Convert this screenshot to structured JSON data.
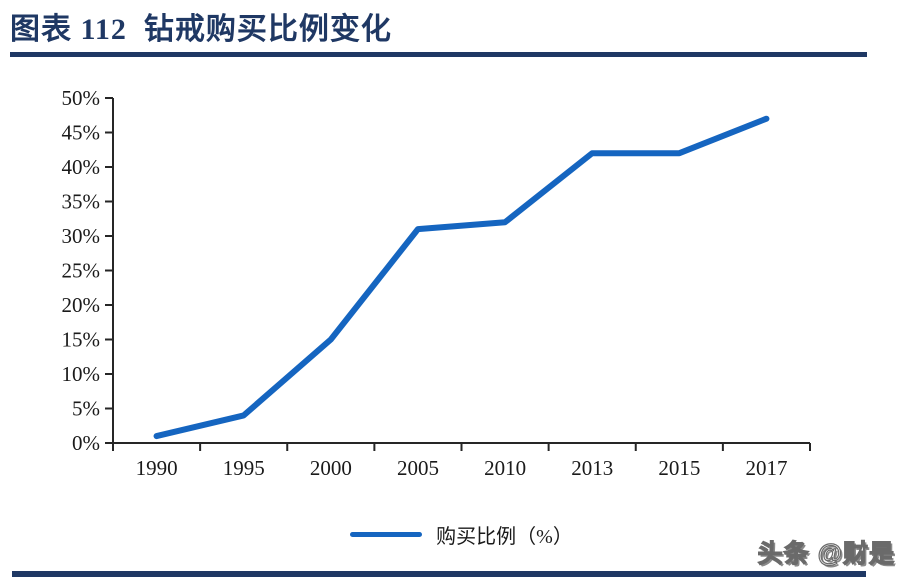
{
  "header": {
    "title": "图表 112  钻戒购买比例变化"
  },
  "chart_data": {
    "type": "line",
    "categories": [
      "1990",
      "1995",
      "2000",
      "2005",
      "2010",
      "2013",
      "2015",
      "2017"
    ],
    "values": [
      1,
      4,
      15,
      31,
      32,
      42,
      42,
      47
    ],
    "series_name": "购买比例（%）",
    "title": "钻戒购买比例变化",
    "xlabel": "",
    "ylabel": "",
    "ylim": [
      0,
      50
    ],
    "y_ticks": [
      "0%",
      "5%",
      "10%",
      "15%",
      "20%",
      "25%",
      "30%",
      "35%",
      "40%",
      "45%",
      "50%"
    ],
    "grid": false,
    "legend_position": "bottom",
    "line_color": "#1565c0",
    "axis_color": "#262626"
  },
  "footer": {
    "watermark": "头条 @财是"
  },
  "colors": {
    "accent_navy": "#1f3864",
    "line_blue": "#1565c0",
    "text_black": "#1a1a1a"
  }
}
